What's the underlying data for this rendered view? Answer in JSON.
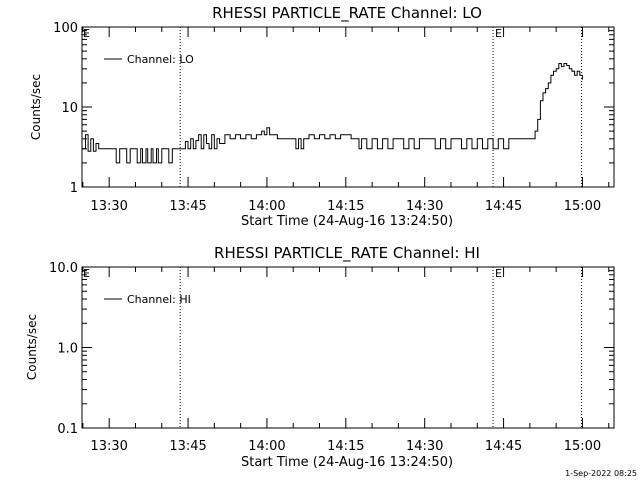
{
  "footer": {
    "timestamp": "1-Sep-2022 08:25"
  },
  "chart_data": [
    {
      "type": "line",
      "title": "RHESSI PARTICLE_RATE Channel: LO",
      "xlabel": "Start Time (24-Aug-16 13:24:50)",
      "ylabel": "Counts/sec",
      "yscale": "log",
      "ylim": [
        1,
        100
      ],
      "xlim": [
        "13:24:50",
        "15:06:00"
      ],
      "yticks": [
        {
          "value": 1,
          "label": "1"
        },
        {
          "value": 10,
          "label": "10"
        },
        {
          "value": 100,
          "label": "100"
        }
      ],
      "xticks": [
        "13:30",
        "13:45",
        "14:00",
        "14:15",
        "14:30",
        "14:45",
        "15:00"
      ],
      "markers": [
        {
          "time": "13:43:30",
          "label": ""
        },
        {
          "time": "14:43:00",
          "label": "E"
        },
        {
          "time": "14:59:50",
          "label": ""
        }
      ],
      "corner_label": "E",
      "legend": {
        "position": "top-left"
      },
      "series": [
        {
          "name": "Channel: LO",
          "x": [
            "13:24:50",
            "13:25:30",
            "13:26:00",
            "13:26:30",
            "13:27:00",
            "13:27:30",
            "13:28:00",
            "13:29:00",
            "13:30:00",
            "13:31:00",
            "13:31:20",
            "13:32:00",
            "13:33:00",
            "13:33:20",
            "13:34:00",
            "13:35:00",
            "13:35:20",
            "13:36:00",
            "13:36:20",
            "13:37:00",
            "13:37:20",
            "13:38:00",
            "13:38:20",
            "13:39:00",
            "13:39:20",
            "13:40:00",
            "13:41:00",
            "13:41:20",
            "13:42:00",
            "13:42:20",
            "13:43:00",
            "13:44:00",
            "13:44:30",
            "13:45:00",
            "13:45:30",
            "13:46:00",
            "13:46:30",
            "13:47:00",
            "13:47:30",
            "13:48:00",
            "13:48:30",
            "13:49:00",
            "13:49:30",
            "13:50:00",
            "13:50:30",
            "13:51:00",
            "13:52:00",
            "13:53:00",
            "13:54:00",
            "13:55:00",
            "13:56:00",
            "13:57:00",
            "13:58:00",
            "13:59:00",
            "13:59:30",
            "14:00:00",
            "14:00:30",
            "14:01:00",
            "14:02:00",
            "14:03:00",
            "14:04:00",
            "14:05:00",
            "14:05:30",
            "14:06:00",
            "14:06:30",
            "14:07:00",
            "14:08:00",
            "14:09:00",
            "14:10:00",
            "14:11:00",
            "14:12:00",
            "14:13:00",
            "14:14:00",
            "14:15:00",
            "14:16:00",
            "14:17:00",
            "14:17:30",
            "14:18:00",
            "14:19:00",
            "14:20:00",
            "14:21:00",
            "14:22:00",
            "14:23:00",
            "14:24:00",
            "14:25:00",
            "14:26:00",
            "14:27:00",
            "14:28:00",
            "14:29:00",
            "14:30:00",
            "14:31:00",
            "14:32:00",
            "14:33:00",
            "14:34:00",
            "14:35:00",
            "14:36:00",
            "14:37:00",
            "14:38:00",
            "14:39:00",
            "14:40:00",
            "14:41:00",
            "14:42:00",
            "14:43:00",
            "14:44:00",
            "14:45:00",
            "14:46:00",
            "14:47:00",
            "14:48:00",
            "14:49:00",
            "14:50:00",
            "14:51:00",
            "14:51:30",
            "14:52:00",
            "14:52:30",
            "14:53:00",
            "14:53:30",
            "14:54:00",
            "14:54:30",
            "14:55:00",
            "14:55:30",
            "14:56:00",
            "14:56:30",
            "14:57:00",
            "14:57:30",
            "14:58:00",
            "14:58:30",
            "14:59:00",
            "14:59:30",
            "15:00:00"
          ],
          "values": [
            3,
            4.5,
            2.8,
            4,
            2.8,
            3.5,
            3,
            3,
            3,
            3,
            2,
            3,
            3,
            2,
            3,
            3,
            2,
            3,
            2,
            3,
            2,
            3,
            2,
            3,
            2,
            3,
            3,
            2,
            3,
            3,
            3,
            3,
            3.7,
            3,
            4,
            3,
            3.8,
            4.5,
            3,
            4.5,
            3.5,
            3,
            4.5,
            3,
            4,
            3.5,
            4.5,
            4,
            4.5,
            4,
            4.5,
            4,
            4.5,
            5,
            4.5,
            5.5,
            4.5,
            4.5,
            4,
            4,
            4,
            4,
            3,
            4,
            3,
            4,
            4.5,
            4,
            4.5,
            4,
            4.5,
            4,
            4.5,
            4.5,
            4,
            4,
            3,
            4,
            3,
            4,
            3,
            4,
            3,
            4,
            4,
            3,
            4,
            3,
            4,
            4,
            4,
            3,
            4,
            3,
            4,
            4,
            3,
            4,
            3,
            4,
            3,
            4,
            3,
            4,
            3,
            4,
            4,
            4,
            4,
            4,
            5,
            7,
            12,
            15,
            17,
            20,
            25,
            28,
            30,
            35,
            32,
            35,
            33,
            30,
            28,
            25,
            28,
            25,
            22
          ]
        }
      ]
    },
    {
      "type": "line",
      "title": "RHESSI PARTICLE_RATE Channel: HI",
      "xlabel": "Start Time (24-Aug-16 13:24:50)",
      "ylabel": "Counts/sec",
      "yscale": "log",
      "ylim": [
        0.1,
        10
      ],
      "xlim": [
        "13:24:50",
        "15:06:00"
      ],
      "yticks": [
        {
          "value": 0.1,
          "label": "0.1"
        },
        {
          "value": 1,
          "label": "1.0"
        },
        {
          "value": 10,
          "label": "10.0"
        }
      ],
      "xticks": [
        "13:30",
        "13:45",
        "14:00",
        "14:15",
        "14:30",
        "14:45",
        "15:00"
      ],
      "markers": [
        {
          "time": "13:43:30",
          "label": ""
        },
        {
          "time": "14:43:00",
          "label": "E"
        },
        {
          "time": "14:59:50",
          "label": ""
        }
      ],
      "corner_label": "E",
      "legend": {
        "position": "top-left"
      },
      "series": [
        {
          "name": "Channel: HI",
          "x": [],
          "values": []
        }
      ]
    }
  ]
}
